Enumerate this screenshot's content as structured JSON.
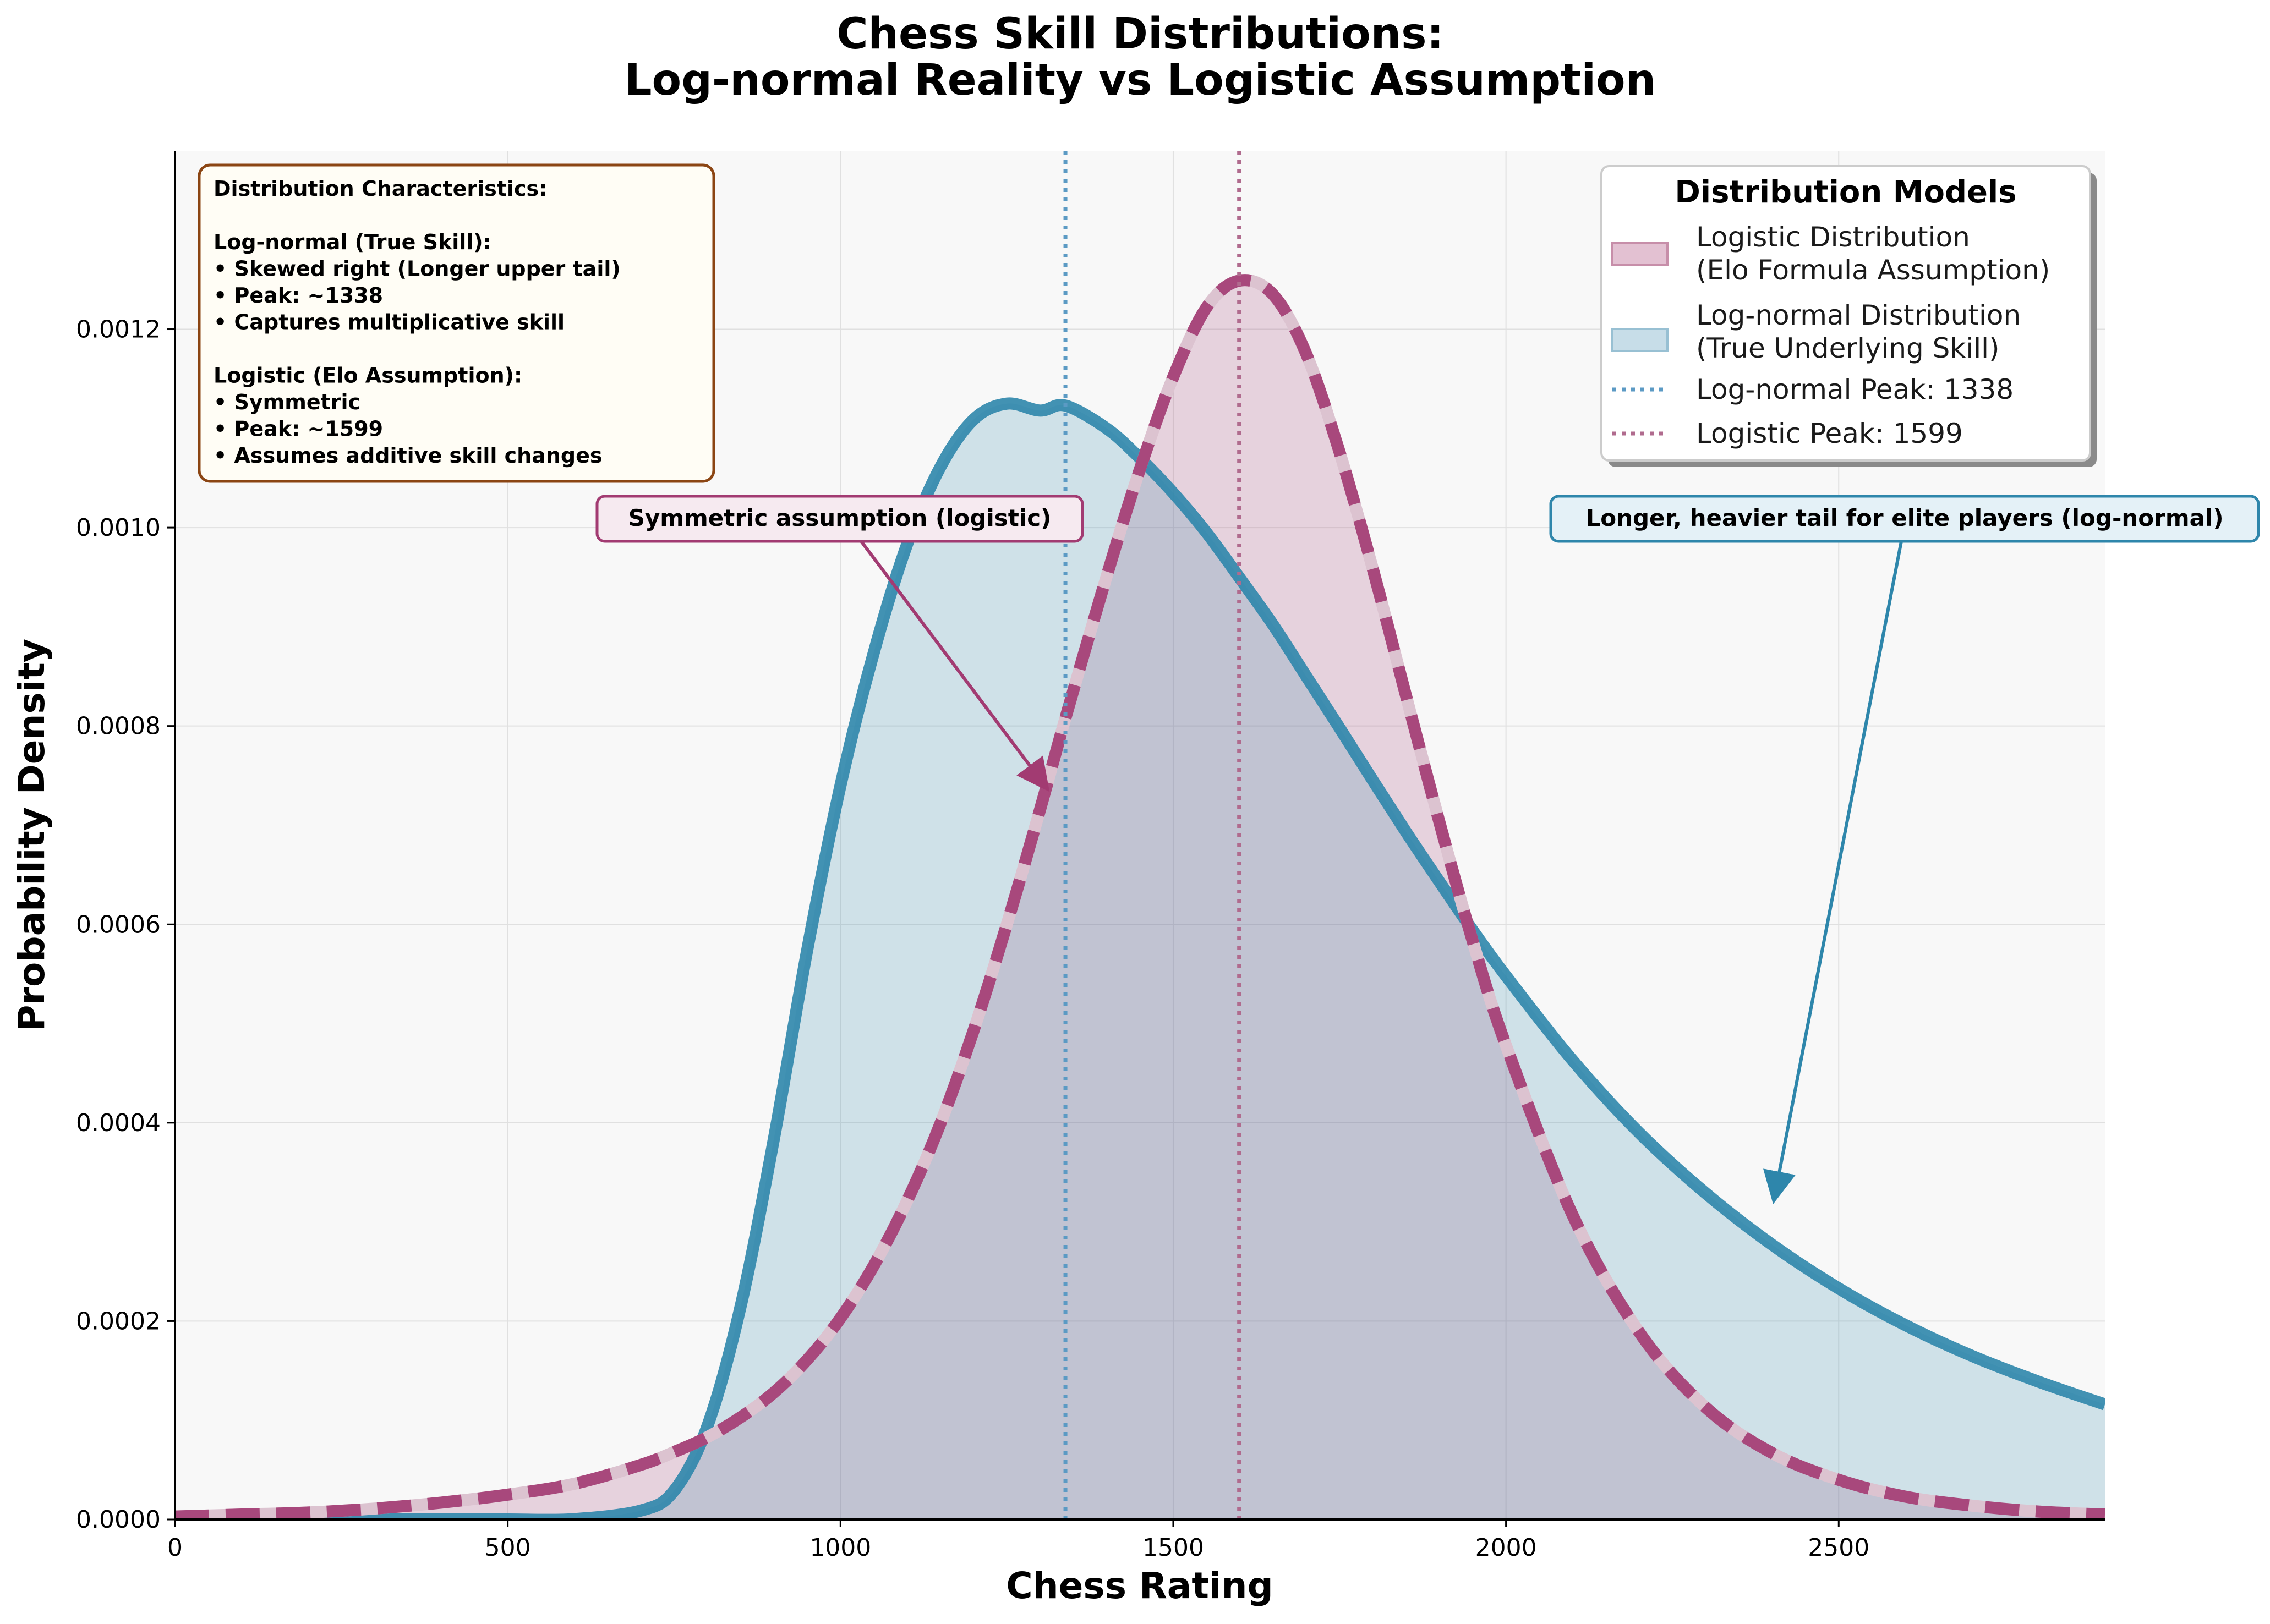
{
  "chart_data": {
    "type": "area",
    "title": "Chess Skill Distributions:",
    "subtitle": "Log-normal Reality vs Logistic Assumption",
    "xlabel": "Chess Rating",
    "ylabel": "Probability Density",
    "xlim": [
      0,
      2900
    ],
    "ylim": [
      0,
      0.00138
    ],
    "x_ticks": [
      "0",
      "500",
      "1000",
      "1500",
      "2000",
      "2500"
    ],
    "x_tick_values": [
      0,
      500,
      1000,
      1500,
      2000,
      2500
    ],
    "y_ticks": [
      "0.0000",
      "0.0002",
      "0.0004",
      "0.0006",
      "0.0008",
      "0.0010",
      "0.0012"
    ],
    "y_tick_values": [
      0,
      0.0002,
      0.0004,
      0.0006,
      0.0008,
      0.001,
      0.0012
    ],
    "grid": true,
    "x": [
      0,
      100,
      200,
      300,
      400,
      500,
      600,
      700,
      750,
      800,
      850,
      900,
      950,
      1000,
      1050,
      1100,
      1150,
      1200,
      1250,
      1300,
      1338,
      1400,
      1450,
      1500,
      1550,
      1599,
      1650,
      1700,
      1750,
      1800,
      1850,
      1900,
      1950,
      2000,
      2100,
      2200,
      2300,
      2400,
      2500,
      2600,
      2700,
      2800,
      2900
    ],
    "series": [
      {
        "name": "Logistic Distribution\n(Elo Formula Assumption)",
        "color": "#a23b72",
        "style": "dashed",
        "values": [
          3e-06,
          5e-06,
          7e-06,
          1.1e-05,
          1.7e-05,
          2.5e-05,
          3.6e-05,
          5.5e-05,
          6.8e-05,
          8.3e-05,
          0.000103,
          0.000128,
          0.000161,
          0.000203,
          0.000256,
          0.000321,
          0.000399,
          0.000493,
          0.0006,
          0.000716,
          0.000808,
          0.000951,
          0.001059,
          0.001152,
          0.001222,
          0.001249,
          0.001235,
          0.001175,
          0.001076,
          0.000958,
          0.00083,
          0.000703,
          0.000583,
          0.000478,
          0.000307,
          0.000189,
          0.000113,
          6.7e-05,
          4e-05,
          2.3e-05,
          1.4e-05,
          8e-06,
          5e-06
        ]
      },
      {
        "name": "Log-normal Distribution\n(True Underlying Skill)",
        "color": "#2e86ab",
        "style": "solid",
        "values": [
          0,
          0,
          0,
          0,
          0,
          0,
          4e-07,
          9e-06,
          2.9e-05,
          9.4e-05,
          0.000215,
          0.000384,
          0.000574,
          0.00074,
          0.000874,
          0.000983,
          0.001061,
          0.001109,
          0.001125,
          0.001118,
          0.001123,
          0.0011,
          0.00107,
          0.001035,
          0.000995,
          0.00095,
          0.000902,
          0.00085,
          0.000798,
          0.000745,
          0.000693,
          0.000643,
          0.000594,
          0.000548,
          0.000463,
          0.00039,
          0.000329,
          0.000277,
          0.000233,
          0.000196,
          0.000165,
          0.000139,
          0.000116
        ]
      }
    ],
    "reference_lines": [
      {
        "name": "Log-normal Peak: 1338",
        "x": 1338,
        "color": "#5b9ac4"
      },
      {
        "name": "Logistic Peak: 1599",
        "x": 1599,
        "color": "#b06b8e"
      }
    ],
    "legend": {
      "title": "Distribution Models",
      "placement": "top-right",
      "entries": [
        {
          "line1": "Logistic Distribution",
          "line2": "(Elo Formula Assumption)",
          "swatch": "fill",
          "color": "#e3c1d2",
          "edge": "#c78ea9"
        },
        {
          "line1": "Log-normal Distribution",
          "line2": "(True Underlying Skill)",
          "swatch": "fill",
          "color": "#c7dde8",
          "edge": "#98c0d3"
        },
        {
          "line1": "Log-normal Peak: 1338",
          "line2": "",
          "swatch": "dotted",
          "color": "#5b9ac4"
        },
        {
          "line1": "Logistic Peak: 1599",
          "line2": "",
          "swatch": "dotted",
          "color": "#b06b8e"
        }
      ]
    },
    "info_box": {
      "placement": "top-left",
      "lines": [
        "Distribution Characteristics:",
        "",
        "Log-normal (True Skill):",
        "• Skewed right (Longer upper tail)",
        "• Peak: ~1338",
        "• Captures multiplicative skill",
        "",
        "Logistic (Elo Assumption):",
        "• Symmetric",
        "• Peak: ~1599",
        "• Assumes additive skill changes"
      ]
    },
    "annotations": [
      {
        "text": "Symmetric assumption (logistic)",
        "point_x": 1290,
        "point_y": 0.00075,
        "text_x": 1025,
        "text_y": 0.001,
        "color": "#a23b72",
        "background": "#f6eaf0"
      },
      {
        "text": "Longer, heavier tail for elite players (log-normal)",
        "point_x": 2400,
        "point_y": 0.00031,
        "text_x": 2600,
        "text_y": 0.001,
        "color": "#2e86ab",
        "background": "#e4f1f7"
      }
    ]
  }
}
